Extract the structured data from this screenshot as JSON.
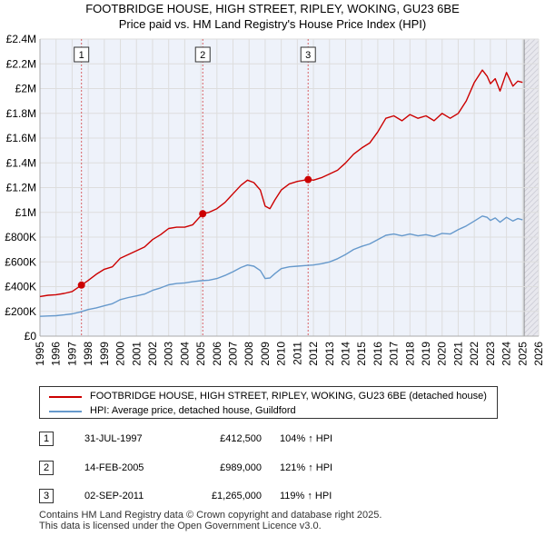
{
  "title_line1": "FOOTBRIDGE HOUSE, HIGH STREET, RIPLEY, WOKING, GU23 6BE",
  "title_line2": "Price paid vs. HM Land Registry's House Price Index (HPI)",
  "colors": {
    "red": "#cc0000",
    "blue": "#6699cc",
    "grid": "#dddddd",
    "bg": "#eef2fa",
    "future": "#e8e8ee"
  },
  "chart_data": {
    "type": "line",
    "title": "Price paid vs. HM Land Registry's House Price Index (HPI)",
    "xlim": [
      1995,
      2026
    ],
    "ylim": [
      0,
      2400000
    ],
    "x_ticks": [
      "1995",
      "1996",
      "1997",
      "1998",
      "1999",
      "2000",
      "2001",
      "2002",
      "2003",
      "2004",
      "2005",
      "2006",
      "2007",
      "2008",
      "2009",
      "2010",
      "2011",
      "2012",
      "2013",
      "2014",
      "2015",
      "2016",
      "2017",
      "2018",
      "2019",
      "2020",
      "2021",
      "2022",
      "2023",
      "2024",
      "2025",
      "2026"
    ],
    "y_ticks": [
      {
        "value": 0,
        "label": "£0"
      },
      {
        "value": 200000,
        "label": "£200K"
      },
      {
        "value": 400000,
        "label": "£400K"
      },
      {
        "value": 600000,
        "label": "£600K"
      },
      {
        "value": 800000,
        "label": "£800K"
      },
      {
        "value": 1000000,
        "label": "£1M"
      },
      {
        "value": 1200000,
        "label": "£1.2M"
      },
      {
        "value": 1400000,
        "label": "£1.4M"
      },
      {
        "value": 1600000,
        "label": "£1.6M"
      },
      {
        "value": 1800000,
        "label": "£1.8M"
      },
      {
        "value": 2000000,
        "label": "£2M"
      },
      {
        "value": 2200000,
        "label": "£2.2M"
      },
      {
        "value": 2400000,
        "label": "£2.4M"
      }
    ],
    "future_start": 2025.1,
    "series": [
      {
        "name": "FOOTBRIDGE HOUSE, HIGH STREET, RIPLEY, WOKING, GU23 6BE (detached house)",
        "color": "#cc0000",
        "x": [
          1995.0,
          1995.5,
          1996.0,
          1996.5,
          1997.0,
          1997.58,
          1998.0,
          1998.5,
          1999.0,
          1999.5,
          2000.0,
          2000.5,
          2001.0,
          2001.5,
          2002.0,
          2002.5,
          2003.0,
          2003.5,
          2004.0,
          2004.5,
          2005.12,
          2005.5,
          2006.0,
          2006.5,
          2007.0,
          2007.5,
          2007.9,
          2008.3,
          2008.7,
          2009.0,
          2009.3,
          2009.6,
          2010.0,
          2010.5,
          2011.0,
          2011.67,
          2012.0,
          2012.5,
          2013.0,
          2013.5,
          2014.0,
          2014.5,
          2015.0,
          2015.5,
          2016.0,
          2016.5,
          2017.0,
          2017.5,
          2018.0,
          2018.5,
          2019.0,
          2019.5,
          2020.0,
          2020.5,
          2021.0,
          2021.5,
          2022.0,
          2022.5,
          2022.8,
          2023.0,
          2023.3,
          2023.6,
          2024.0,
          2024.4,
          2024.7,
          2025.0
        ],
        "y": [
          320000,
          330000,
          335000,
          345000,
          360000,
          412500,
          450000,
          500000,
          540000,
          560000,
          630000,
          660000,
          690000,
          720000,
          780000,
          820000,
          870000,
          880000,
          880000,
          900000,
          989000,
          1000000,
          1030000,
          1080000,
          1150000,
          1220000,
          1260000,
          1240000,
          1180000,
          1050000,
          1030000,
          1100000,
          1180000,
          1230000,
          1250000,
          1265000,
          1260000,
          1280000,
          1310000,
          1340000,
          1400000,
          1470000,
          1520000,
          1560000,
          1650000,
          1760000,
          1780000,
          1740000,
          1790000,
          1760000,
          1780000,
          1740000,
          1800000,
          1760000,
          1800000,
          1900000,
          2050000,
          2150000,
          2100000,
          2040000,
          2080000,
          1980000,
          2130000,
          2020000,
          2060000,
          2050000
        ]
      },
      {
        "name": "HPI: Average price, detached house, Guildford",
        "color": "#6699cc",
        "x": [
          1995.0,
          1995.5,
          1996.0,
          1996.5,
          1997.0,
          1997.5,
          1998.0,
          1998.5,
          1999.0,
          1999.5,
          2000.0,
          2000.5,
          2001.0,
          2001.5,
          2002.0,
          2002.5,
          2003.0,
          2003.5,
          2004.0,
          2004.5,
          2005.0,
          2005.5,
          2006.0,
          2006.5,
          2007.0,
          2007.5,
          2007.9,
          2008.3,
          2008.7,
          2009.0,
          2009.3,
          2009.6,
          2010.0,
          2010.5,
          2011.0,
          2011.5,
          2012.0,
          2012.5,
          2013.0,
          2013.5,
          2014.0,
          2014.5,
          2015.0,
          2015.5,
          2016.0,
          2016.5,
          2017.0,
          2017.5,
          2018.0,
          2018.5,
          2019.0,
          2019.5,
          2020.0,
          2020.5,
          2021.0,
          2021.5,
          2022.0,
          2022.5,
          2022.8,
          2023.0,
          2023.3,
          2023.6,
          2024.0,
          2024.4,
          2024.7,
          2025.0
        ],
        "y": [
          160000,
          163000,
          165000,
          172000,
          180000,
          195000,
          215000,
          228000,
          245000,
          262000,
          295000,
          312000,
          325000,
          340000,
          370000,
          390000,
          415000,
          425000,
          430000,
          440000,
          448000,
          452000,
          465000,
          490000,
          520000,
          555000,
          575000,
          565000,
          530000,
          465000,
          470000,
          505000,
          545000,
          560000,
          565000,
          570000,
          575000,
          585000,
          600000,
          625000,
          660000,
          700000,
          725000,
          745000,
          780000,
          815000,
          825000,
          810000,
          825000,
          810000,
          820000,
          805000,
          830000,
          825000,
          860000,
          890000,
          930000,
          970000,
          960000,
          935000,
          955000,
          920000,
          960000,
          930000,
          950000,
          940000
        ]
      }
    ],
    "sales": [
      {
        "label": "1",
        "x": 1997.58,
        "y": 412500
      },
      {
        "label": "2",
        "x": 2005.12,
        "y": 989000
      },
      {
        "label": "3",
        "x": 2011.67,
        "y": 1265000
      }
    ]
  },
  "legend": {
    "red_label": "FOOTBRIDGE HOUSE, HIGH STREET, RIPLEY, WOKING, GU23 6BE (detached house)",
    "blue_label": "HPI: Average price, detached house, Guildford"
  },
  "transactions": [
    {
      "num": "1",
      "date": "31-JUL-1997",
      "price": "£412,500",
      "hpi": "104% ↑ HPI"
    },
    {
      "num": "2",
      "date": "14-FEB-2005",
      "price": "£989,000",
      "hpi": "121% ↑ HPI"
    },
    {
      "num": "3",
      "date": "02-SEP-2011",
      "price": "£1,265,000",
      "hpi": "119% ↑ HPI"
    }
  ],
  "footer": {
    "line1": "Contains HM Land Registry data © Crown copyright and database right 2025.",
    "line2": "This data is licensed under the Open Government Licence v3.0."
  }
}
